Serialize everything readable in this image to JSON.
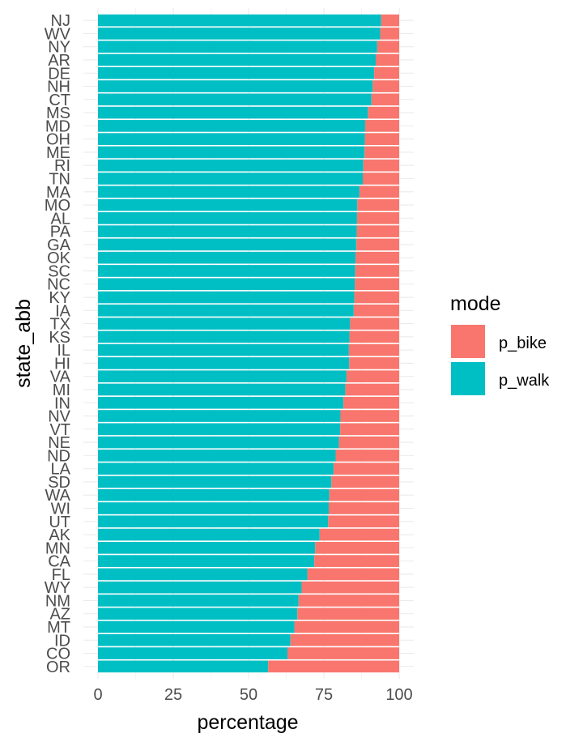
{
  "chart_data": {
    "type": "bar",
    "orientation": "horizontal",
    "stacked": true,
    "normalized": true,
    "xlabel": "percentage",
    "ylabel": "state_abb",
    "xlim": [
      0,
      100
    ],
    "xticks": [
      0,
      25,
      50,
      75,
      100
    ],
    "grid": true,
    "legend": {
      "title": "mode",
      "position": "right"
    },
    "colors": {
      "p_bike": "#F8766D",
      "p_walk": "#00BFC4"
    },
    "categories": [
      "NJ",
      "WV",
      "NY",
      "AR",
      "DE",
      "NH",
      "CT",
      "MS",
      "MD",
      "OH",
      "ME",
      "RI",
      "TN",
      "MA",
      "MO",
      "AL",
      "PA",
      "GA",
      "OK",
      "SC",
      "NC",
      "KY",
      "IA",
      "TX",
      "KS",
      "IL",
      "HI",
      "VA",
      "MI",
      "IN",
      "NV",
      "VT",
      "NE",
      "ND",
      "LA",
      "SD",
      "WA",
      "WI",
      "UT",
      "AK",
      "MN",
      "CA",
      "FL",
      "WY",
      "NM",
      "AZ",
      "MT",
      "ID",
      "CO",
      "OR"
    ],
    "series": [
      {
        "name": "p_walk",
        "values": [
          94.0,
          93.7,
          92.7,
          92.2,
          91.7,
          91.2,
          90.8,
          89.6,
          88.7,
          88.6,
          88.5,
          88.1,
          87.9,
          86.8,
          86.1,
          86.0,
          85.9,
          85.8,
          85.5,
          85.4,
          85.3,
          85.1,
          84.9,
          83.7,
          83.5,
          83.3,
          83.4,
          82.5,
          82.1,
          81.5,
          80.5,
          80.4,
          80.0,
          78.9,
          78.2,
          77.5,
          76.8,
          76.6,
          76.4,
          73.6,
          72.1,
          71.8,
          69.5,
          67.6,
          66.6,
          66.2,
          65.2,
          63.9,
          62.9,
          56.5
        ]
      },
      {
        "name": "p_bike",
        "values": [
          6.0,
          6.3,
          7.3,
          7.8,
          8.3,
          8.8,
          9.2,
          10.4,
          11.3,
          11.4,
          11.5,
          11.9,
          12.1,
          13.2,
          13.9,
          14.0,
          14.1,
          14.2,
          14.5,
          14.6,
          14.7,
          14.9,
          15.1,
          16.3,
          16.5,
          16.7,
          16.6,
          17.5,
          17.9,
          18.5,
          19.5,
          19.6,
          20.0,
          21.1,
          21.8,
          22.5,
          23.2,
          23.4,
          23.6,
          26.4,
          27.9,
          28.2,
          30.5,
          32.4,
          33.4,
          33.8,
          34.8,
          36.1,
          37.1,
          43.5
        ]
      }
    ]
  }
}
